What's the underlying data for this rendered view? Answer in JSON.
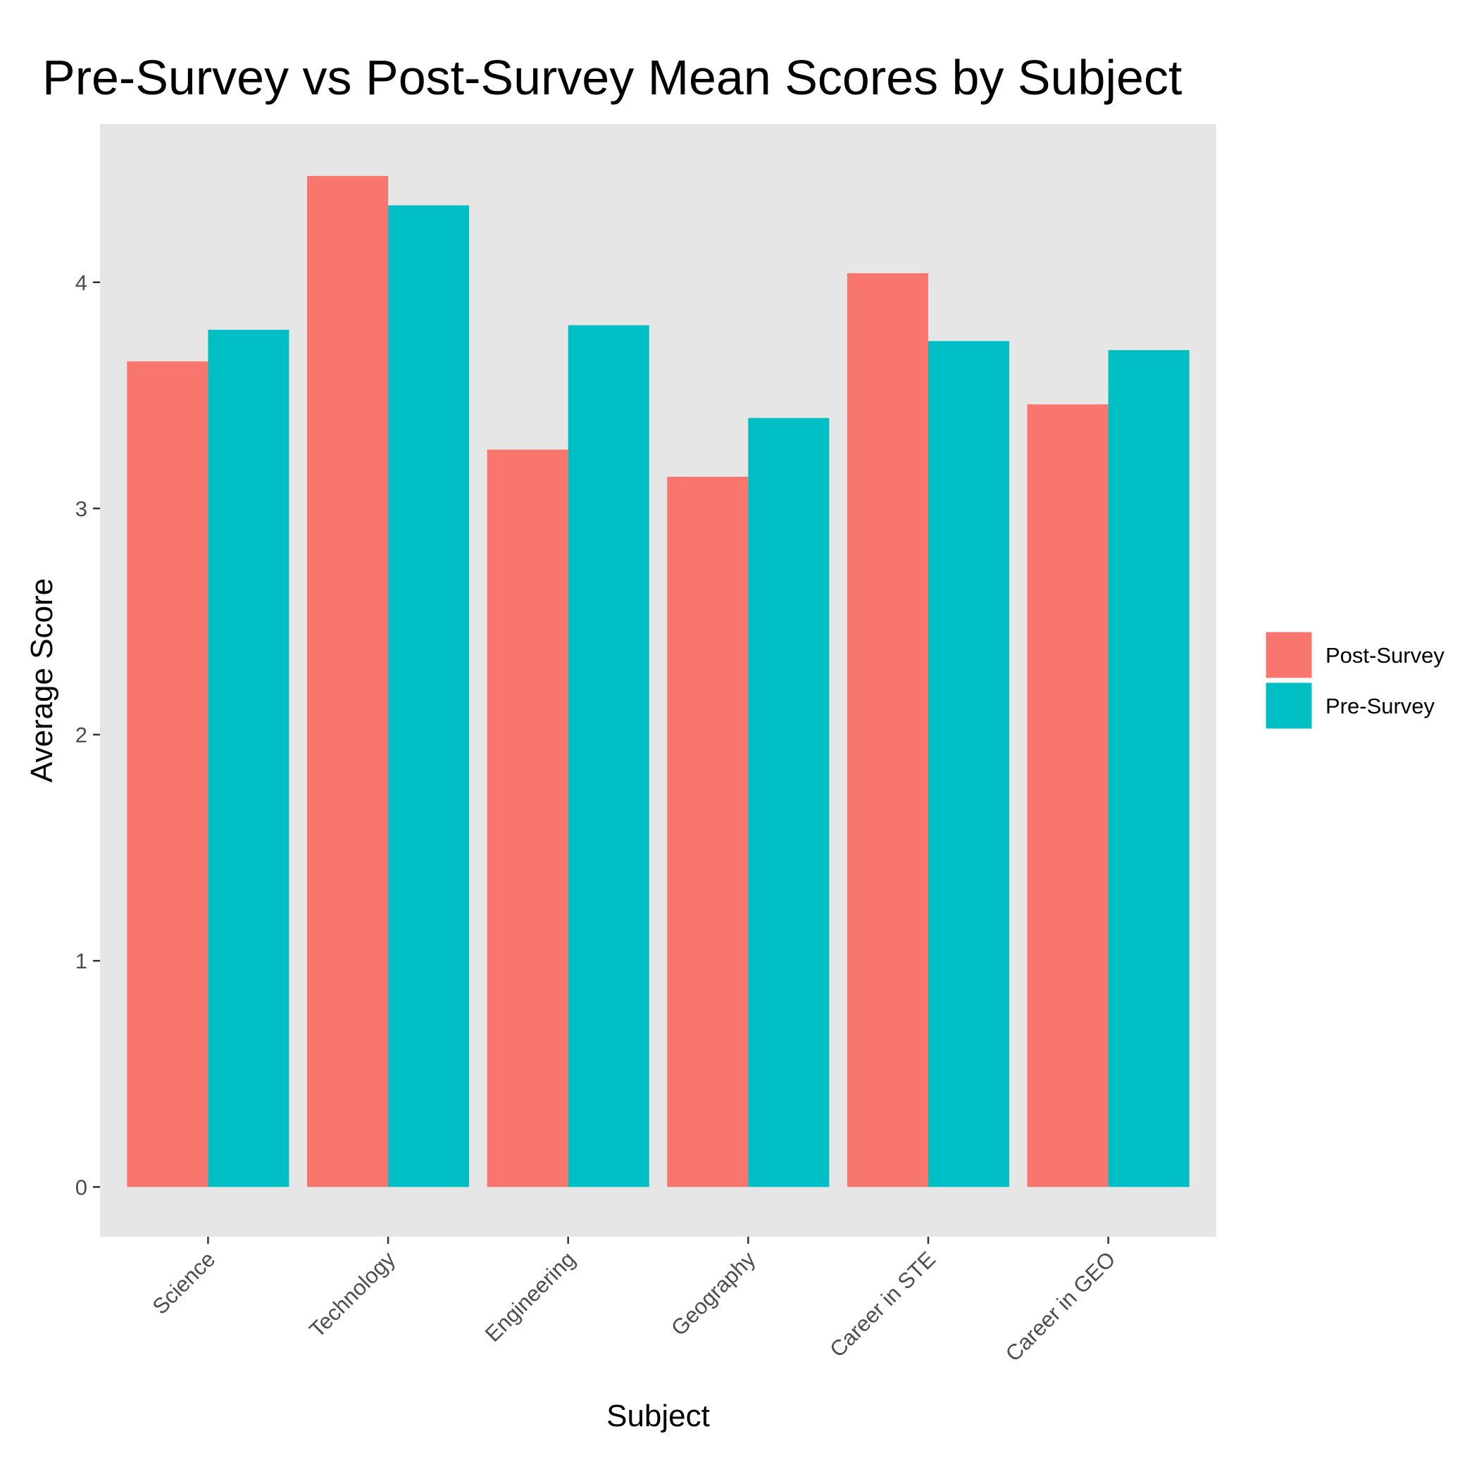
{
  "chart_data": {
    "type": "bar",
    "title": "Pre-Survey vs Post-Survey Mean Scores by Subject",
    "xlabel": "Subject",
    "ylabel": "Average Score",
    "categories": [
      "Science",
      "Technology",
      "Engineering",
      "Geography",
      "Career in STE",
      "Career in GEO"
    ],
    "series": [
      {
        "name": "Post-Survey",
        "color": "#F8766D",
        "values": [
          3.65,
          4.47,
          3.26,
          3.14,
          4.04,
          3.46
        ]
      },
      {
        "name": "Pre-Survey",
        "color": "#00BFC4",
        "values": [
          3.79,
          4.34,
          3.81,
          3.4,
          3.74,
          3.7
        ]
      }
    ],
    "ylim": [
      -0.22,
      4.7
    ],
    "yticks": [
      0,
      1,
      2,
      3,
      4
    ],
    "grid": false,
    "panel_background": "#E6E6E6",
    "legend_position": "right"
  }
}
